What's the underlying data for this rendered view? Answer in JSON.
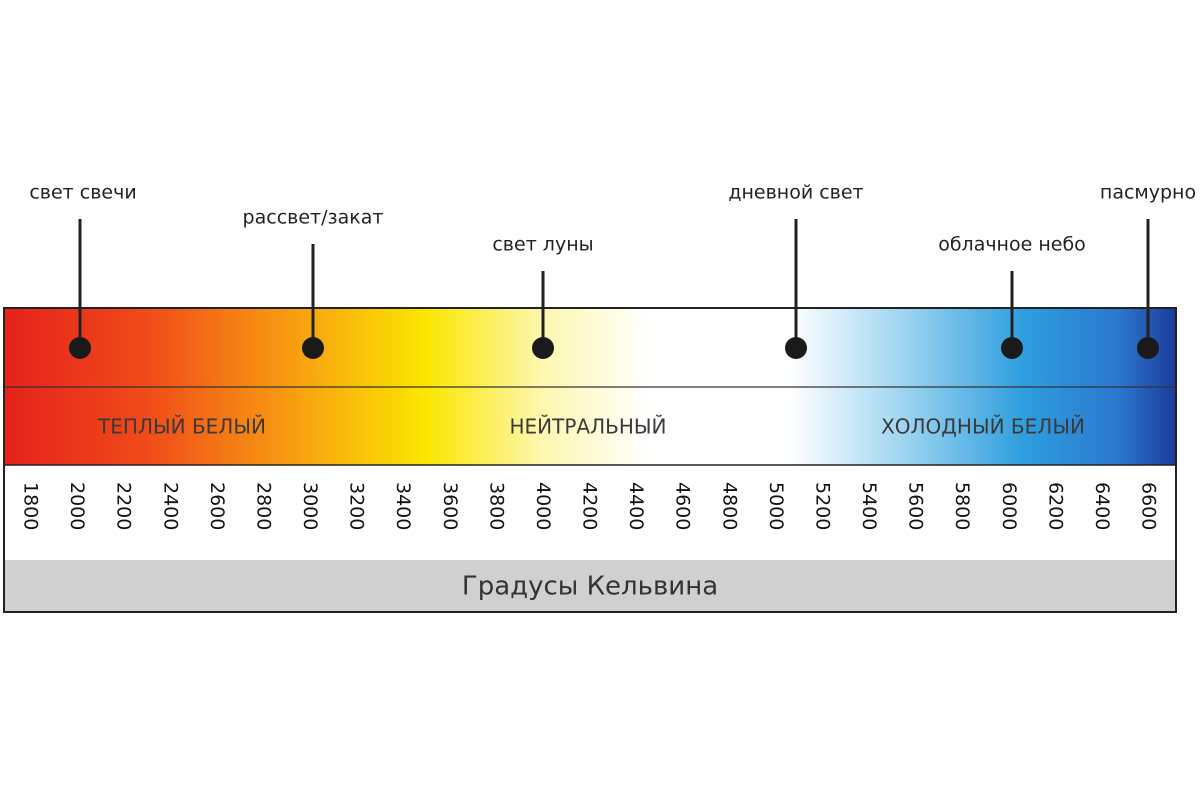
{
  "annotations": [
    {
      "label": "свет свечи"
    },
    {
      "label": "рассвет/закат"
    },
    {
      "label": "свет луны"
    },
    {
      "label": "дневной свет"
    },
    {
      "label": "облачное небо"
    },
    {
      "label": "пасмурно"
    }
  ],
  "zones": [
    "ТЕПЛЫЙ БЕЛЫЙ",
    "НЕЙТРАЛЬНЫЙ",
    "ХОЛОДНЫЙ БЕЛЫЙ"
  ],
  "scale": [
    1800,
    2000,
    2200,
    2400,
    2600,
    2800,
    3000,
    3200,
    3400,
    3600,
    3800,
    4000,
    4200,
    4400,
    4600,
    4800,
    5000,
    5200,
    5400,
    5600,
    5800,
    6000,
    6200,
    6400,
    6600
  ],
  "axis_title": "Градусы Кельвина"
}
